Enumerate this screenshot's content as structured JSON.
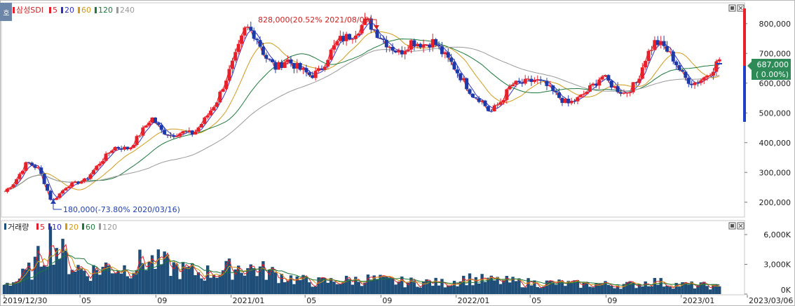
{
  "price_legend": {
    "stock": "삼성SDI",
    "ma": [
      {
        "label": "5",
        "color": "#e0202a"
      },
      {
        "label": "20",
        "color": "#2f2fc8"
      },
      {
        "label": "60",
        "color": "#d49a1a"
      },
      {
        "label": "120",
        "color": "#1e7a3c"
      },
      {
        "label": "240",
        "color": "#9a9a9a"
      }
    ]
  },
  "volume_legend": {
    "title": "거래량",
    "ma": [
      {
        "label": "5",
        "color": "#e0202a"
      },
      {
        "label": "10",
        "color": "#2f2fc8"
      },
      {
        "label": "20",
        "color": "#d49a1a"
      },
      {
        "label": "60",
        "color": "#1e7a3c"
      },
      {
        "label": "120",
        "color": "#9a9a9a"
      }
    ]
  },
  "annotations": {
    "high": "828,000(20.52% 2021/08/09)",
    "low": "180,000(-73.80% 2020/03/16)"
  },
  "current": {
    "price": "687,000",
    "change": "( 0.00%)"
  },
  "toggle_label": "호",
  "colors": {
    "up": "#e8202a",
    "down": "#1e3aa8",
    "volume": "#1f4e79",
    "current_badge": "#2e8b57"
  },
  "chart_data": [
    {
      "type": "candlestick",
      "series_name": "삼성SDI",
      "y_axis": {
        "ticks": [
          200000,
          300000,
          400000,
          500000,
          600000,
          700000,
          800000
        ],
        "tick_labels": [
          "200,000",
          "300,000",
          "400,000",
          "500,000",
          "600,000",
          "700,000",
          "800,000"
        ],
        "range": [
          150000,
          870000
        ]
      },
      "x_axis": {
        "tick_labels": [
          "2019/12/30",
          "05",
          "09",
          "2021/01",
          "05",
          "09",
          "2022/01",
          "05",
          "09",
          "2023/01",
          "2023/03/06"
        ]
      },
      "close_series": [
        {
          "date": "2019-12-30",
          "close": 235000
        },
        {
          "date": "2020-01-15",
          "close": 265000
        },
        {
          "date": "2020-02-05",
          "close": 335000
        },
        {
          "date": "2020-02-25",
          "close": 310000
        },
        {
          "date": "2020-03-16",
          "close": 200000
        },
        {
          "date": "2020-04-10",
          "close": 255000
        },
        {
          "date": "2020-05-10",
          "close": 275000
        },
        {
          "date": "2020-06-01",
          "close": 330000
        },
        {
          "date": "2020-06-25",
          "close": 385000
        },
        {
          "date": "2020-07-20",
          "close": 380000
        },
        {
          "date": "2020-08-10",
          "close": 440000
        },
        {
          "date": "2020-08-25",
          "close": 485000
        },
        {
          "date": "2020-09-10",
          "close": 440000
        },
        {
          "date": "2020-09-25",
          "close": 425000
        },
        {
          "date": "2020-10-15",
          "close": 435000
        },
        {
          "date": "2020-11-01",
          "close": 430000
        },
        {
          "date": "2020-11-20",
          "close": 480000
        },
        {
          "date": "2020-12-10",
          "close": 545000
        },
        {
          "date": "2020-12-25",
          "close": 620000
        },
        {
          "date": "2021-01-10",
          "close": 700000
        },
        {
          "date": "2021-01-25",
          "close": 790000
        },
        {
          "date": "2021-02-10",
          "close": 760000
        },
        {
          "date": "2021-02-25",
          "close": 690000
        },
        {
          "date": "2021-03-15",
          "close": 650000
        },
        {
          "date": "2021-04-01",
          "close": 680000
        },
        {
          "date": "2021-04-20",
          "close": 650000
        },
        {
          "date": "2021-05-10",
          "close": 625000
        },
        {
          "date": "2021-05-25",
          "close": 640000
        },
        {
          "date": "2021-06-10",
          "close": 700000
        },
        {
          "date": "2021-06-25",
          "close": 745000
        },
        {
          "date": "2021-07-15",
          "close": 760000
        },
        {
          "date": "2021-08-09",
          "close": 810000
        },
        {
          "date": "2021-08-25",
          "close": 770000
        },
        {
          "date": "2021-09-10",
          "close": 735000
        },
        {
          "date": "2021-10-01",
          "close": 700000
        },
        {
          "date": "2021-10-20",
          "close": 740000
        },
        {
          "date": "2021-11-10",
          "close": 730000
        },
        {
          "date": "2021-11-25",
          "close": 740000
        },
        {
          "date": "2021-12-10",
          "close": 700000
        },
        {
          "date": "2021-12-25",
          "close": 665000
        },
        {
          "date": "2022-01-15",
          "close": 600000
        },
        {
          "date": "2022-01-28",
          "close": 560000
        },
        {
          "date": "2022-02-10",
          "close": 545000
        },
        {
          "date": "2022-02-25",
          "close": 500000
        },
        {
          "date": "2022-03-15",
          "close": 540000
        },
        {
          "date": "2022-04-01",
          "close": 595000
        },
        {
          "date": "2022-04-20",
          "close": 600000
        },
        {
          "date": "2022-05-10",
          "close": 610000
        },
        {
          "date": "2022-05-25",
          "close": 595000
        },
        {
          "date": "2022-06-15",
          "close": 555000
        },
        {
          "date": "2022-07-01",
          "close": 530000
        },
        {
          "date": "2022-07-20",
          "close": 550000
        },
        {
          "date": "2022-08-10",
          "close": 590000
        },
        {
          "date": "2022-08-25",
          "close": 625000
        },
        {
          "date": "2022-09-15",
          "close": 585000
        },
        {
          "date": "2022-10-01",
          "close": 565000
        },
        {
          "date": "2022-10-20",
          "close": 600000
        },
        {
          "date": "2022-11-05",
          "close": 690000
        },
        {
          "date": "2022-11-20",
          "close": 740000
        },
        {
          "date": "2022-12-05",
          "close": 720000
        },
        {
          "date": "2022-12-20",
          "close": 680000
        },
        {
          "date": "2023-01-05",
          "close": 620000
        },
        {
          "date": "2023-01-20",
          "close": 600000
        },
        {
          "date": "2023-02-05",
          "close": 615000
        },
        {
          "date": "2023-02-20",
          "close": 645000
        },
        {
          "date": "2023-03-06",
          "close": 687000
        }
      ],
      "moving_averages": [
        "5",
        "20",
        "60",
        "120",
        "240"
      ],
      "annotations": [
        {
          "date": "2021-08-09",
          "value": 828000,
          "label": "828,000(20.52% 2021/08/09)"
        },
        {
          "date": "2020-03-16",
          "value": 180000,
          "label": "180,000(-73.80% 2020/03/16)"
        }
      ],
      "current_price": 687000,
      "grid": false
    },
    {
      "type": "bar",
      "series_name": "거래량",
      "y_axis": {
        "ticks": [
          0,
          3000000,
          6000000
        ],
        "tick_labels": [
          "0K",
          "3,000K",
          "6,000K"
        ],
        "range": [
          0,
          7200000
        ]
      },
      "approx_volume_series": [
        {
          "date": "2020-01",
          "volume": 1200000
        },
        {
          "date": "2020-02",
          "volume": 2600000
        },
        {
          "date": "2020-03",
          "volume": 5500000
        },
        {
          "date": "2020-04",
          "volume": 3000000
        },
        {
          "date": "2020-05",
          "volume": 2200000
        },
        {
          "date": "2020-06",
          "volume": 2800000
        },
        {
          "date": "2020-07",
          "volume": 2600000
        },
        {
          "date": "2020-08",
          "volume": 3400000
        },
        {
          "date": "2020-09",
          "volume": 3000000
        },
        {
          "date": "2020-10",
          "volume": 2400000
        },
        {
          "date": "2020-11",
          "volume": 2100000
        },
        {
          "date": "2020-12",
          "volume": 2300000
        },
        {
          "date": "2021-01",
          "volume": 2800000
        },
        {
          "date": "2021-02",
          "volume": 2500000
        },
        {
          "date": "2021-03",
          "volume": 2000000
        },
        {
          "date": "2021-04",
          "volume": 1500000
        },
        {
          "date": "2021-05",
          "volume": 1200000
        },
        {
          "date": "2021-06",
          "volume": 1300000
        },
        {
          "date": "2021-07",
          "volume": 1400000
        },
        {
          "date": "2021-08",
          "volume": 1500000
        },
        {
          "date": "2021-09",
          "volume": 1300000
        },
        {
          "date": "2021-10",
          "volume": 1200000
        },
        {
          "date": "2021-11",
          "volume": 1200000
        },
        {
          "date": "2021-12",
          "volume": 1100000
        },
        {
          "date": "2022-01",
          "volume": 1600000
        },
        {
          "date": "2022-02",
          "volume": 1400000
        },
        {
          "date": "2022-03",
          "volume": 1300000
        },
        {
          "date": "2022-04",
          "volume": 1200000
        },
        {
          "date": "2022-05",
          "volume": 1100000
        },
        {
          "date": "2022-06",
          "volume": 1100000
        },
        {
          "date": "2022-07",
          "volume": 1000000
        },
        {
          "date": "2022-08",
          "volume": 1000000
        },
        {
          "date": "2022-09",
          "volume": 950000
        },
        {
          "date": "2022-10",
          "volume": 950000
        },
        {
          "date": "2022-11",
          "volume": 1300000
        },
        {
          "date": "2022-12",
          "volume": 1000000
        },
        {
          "date": "2023-01",
          "volume": 900000
        },
        {
          "date": "2023-02",
          "volume": 850000
        },
        {
          "date": "2023-03",
          "volume": 500000
        }
      ],
      "moving_averages": [
        "5",
        "10",
        "20",
        "60",
        "120"
      ]
    }
  ]
}
